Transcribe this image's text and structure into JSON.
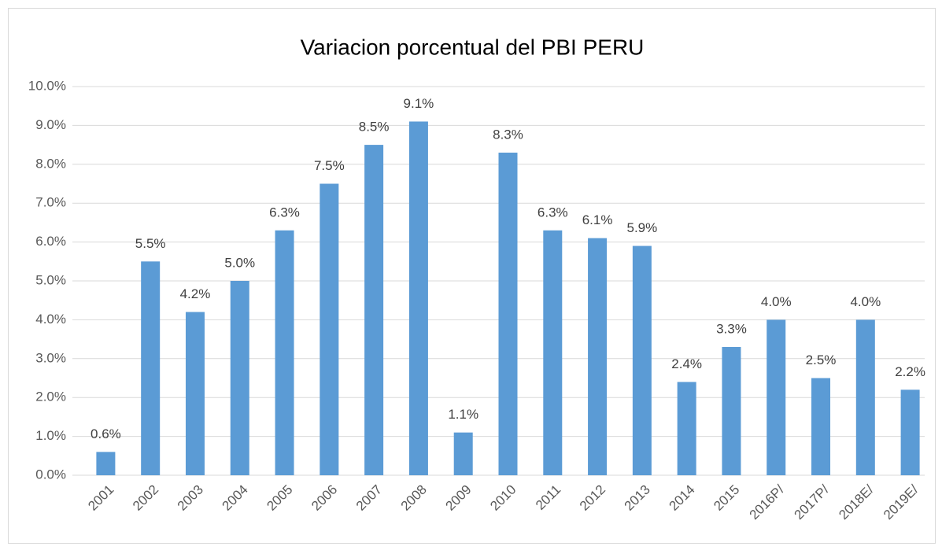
{
  "chart_data": {
    "type": "bar",
    "title": "Variacion porcentual del PBI PERU",
    "categories": [
      "2001",
      "2002",
      "2003",
      "2004",
      "2005",
      "2006",
      "2007",
      "2008",
      "2009",
      "2010",
      "2011",
      "2012",
      "2013",
      "2014",
      "2015",
      "2016P/",
      "2017P/",
      "2018E/",
      "2019E/"
    ],
    "values": [
      0.6,
      5.5,
      4.2,
      5.0,
      6.3,
      7.5,
      8.5,
      9.1,
      1.1,
      8.3,
      6.3,
      6.1,
      5.9,
      2.4,
      3.3,
      4.0,
      2.5,
      4.0,
      2.2
    ],
    "value_labels": [
      "0.6%",
      "5.5%",
      "4.2%",
      "5.0%",
      "6.3%",
      "7.5%",
      "8.5%",
      "9.1%",
      "1.1%",
      "8.3%",
      "6.3%",
      "6.1%",
      "5.9%",
      "2.4%",
      "3.3%",
      "4.0%",
      "2.5%",
      "4.0%",
      "2.2%"
    ],
    "color": "#5b9bd5",
    "ylim": [
      0,
      10
    ],
    "yticks": [
      {
        "value": 0,
        "label": "0.0%"
      },
      {
        "value": 1,
        "label": "1.0%"
      },
      {
        "value": 2,
        "label": "2.0%"
      },
      {
        "value": 3,
        "label": "3.0%"
      },
      {
        "value": 4,
        "label": "4.0%"
      },
      {
        "value": 5,
        "label": "5.0%"
      },
      {
        "value": 6,
        "label": "6.0%"
      },
      {
        "value": 7,
        "label": "7.0%"
      },
      {
        "value": 8,
        "label": "8.0%"
      },
      {
        "value": 9,
        "label": "9.0%"
      },
      {
        "value": 10,
        "label": "10.0%"
      }
    ],
    "grid": true
  }
}
